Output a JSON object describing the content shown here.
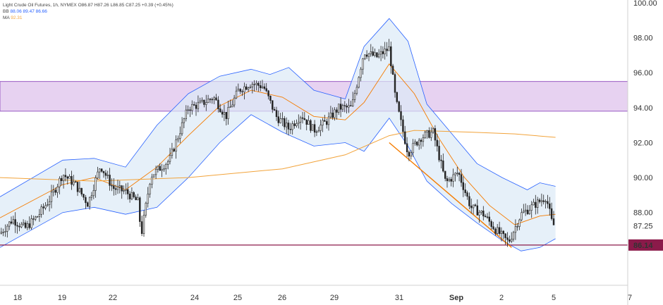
{
  "legend": {
    "title": "Light Crude Oil Futures, 1h, NYMEX",
    "ohlc": "O86.87 H87.26 L86.85 C87.25 +0.39 (+0.45%)",
    "bb_label": "BB",
    "bb_values": "88.06 89.47 86.66",
    "ma_label": "MA",
    "ma_value": "92.31"
  },
  "colors": {
    "candle": "#222222",
    "band_fill": "#dbeaf7",
    "band_line": "#2962ff",
    "bb_basis": "#f57c00",
    "ma": "#f2a33a",
    "trendline": "#f57c00",
    "zone": "#c99be0",
    "support": "#8b1a4a",
    "last_price_bg": "#8b1a4a"
  },
  "chart_data": {
    "type": "candlestick",
    "instrument": "Light Crude Oil Futures",
    "timeframe": "1h",
    "exchange": "NYMEX",
    "ylim": [
      84.2,
      100.0
    ],
    "y_ticks": [
      100.0,
      98.0,
      96.0,
      94.0,
      92.0,
      90.0,
      88.0,
      87.25,
      86.14
    ],
    "x_ticks": [
      {
        "label": "18",
        "bold": false
      },
      {
        "label": "19",
        "bold": false
      },
      {
        "label": "22",
        "bold": false
      },
      {
        "label": "24",
        "bold": false
      },
      {
        "label": "25",
        "bold": false
      },
      {
        "label": "26",
        "bold": false
      },
      {
        "label": "29",
        "bold": false
      },
      {
        "label": "31",
        "bold": false
      },
      {
        "label": "Sep",
        "bold": true
      },
      {
        "label": "2",
        "bold": false
      },
      {
        "label": "5",
        "bold": false
      },
      {
        "label": "7",
        "bold": false
      }
    ],
    "price_path": [
      [
        0,
        86.8
      ],
      [
        0.02,
        87.6
      ],
      [
        0.04,
        87.1
      ],
      [
        0.06,
        87.8
      ],
      [
        0.08,
        88.8
      ],
      [
        0.1,
        90.2
      ],
      [
        0.12,
        89.6
      ],
      [
        0.14,
        88.5
      ],
      [
        0.16,
        90.7
      ],
      [
        0.18,
        89.4
      ],
      [
        0.2,
        89.2
      ],
      [
        0.22,
        88.6
      ],
      [
        0.225,
        86.7
      ],
      [
        0.24,
        90.1
      ],
      [
        0.27,
        91.0
      ],
      [
        0.3,
        94.0
      ],
      [
        0.32,
        94.2
      ],
      [
        0.34,
        94.6
      ],
      [
        0.36,
        93.5
      ],
      [
        0.38,
        95.0
      ],
      [
        0.4,
        95.4
      ],
      [
        0.42,
        95.2
      ],
      [
        0.44,
        93.5
      ],
      [
        0.46,
        92.8
      ],
      [
        0.48,
        93.6
      ],
      [
        0.5,
        92.7
      ],
      [
        0.52,
        93.2
      ],
      [
        0.54,
        94.0
      ],
      [
        0.56,
        94.0
      ],
      [
        0.58,
        97.2
      ],
      [
        0.6,
        96.9
      ],
      [
        0.62,
        97.4
      ],
      [
        0.63,
        94.5
      ],
      [
        0.65,
        91.4
      ],
      [
        0.67,
        92.3
      ],
      [
        0.69,
        92.6
      ],
      [
        0.71,
        89.7
      ],
      [
        0.73,
        90.3
      ],
      [
        0.75,
        88.3
      ],
      [
        0.77,
        87.9
      ],
      [
        0.79,
        87.0
      ],
      [
        0.81,
        86.3
      ],
      [
        0.83,
        87.9
      ],
      [
        0.85,
        88.4
      ],
      [
        0.87,
        88.9
      ],
      [
        0.88,
        87.3
      ],
      [
        0.885,
        87.25
      ]
    ],
    "price_range": {
      "low": 86.14,
      "high": 97.8
    },
    "bollinger_bands": {
      "basis": [
        [
          0,
          87.7
        ],
        [
          0.1,
          89.6
        ],
        [
          0.15,
          90.0
        ],
        [
          0.2,
          89.3
        ],
        [
          0.25,
          90.6
        ],
        [
          0.3,
          92.4
        ],
        [
          0.35,
          94.1
        ],
        [
          0.4,
          95.0
        ],
        [
          0.45,
          94.6
        ],
        [
          0.5,
          93.5
        ],
        [
          0.55,
          93.3
        ],
        [
          0.58,
          94.3
        ],
        [
          0.62,
          96.5
        ],
        [
          0.66,
          94.8
        ],
        [
          0.7,
          92.2
        ],
        [
          0.74,
          90.0
        ],
        [
          0.78,
          88.4
        ],
        [
          0.82,
          87.3
        ],
        [
          0.86,
          87.8
        ],
        [
          0.885,
          87.9
        ]
      ],
      "upper": [
        [
          0,
          88.9
        ],
        [
          0.1,
          91.0
        ],
        [
          0.15,
          91.1
        ],
        [
          0.2,
          90.6
        ],
        [
          0.25,
          93.0
        ],
        [
          0.3,
          94.8
        ],
        [
          0.35,
          95.8
        ],
        [
          0.4,
          96.2
        ],
        [
          0.43,
          95.9
        ],
        [
          0.46,
          96.3
        ],
        [
          0.5,
          95.0
        ],
        [
          0.55,
          94.5
        ],
        [
          0.58,
          97.5
        ],
        [
          0.62,
          99.1
        ],
        [
          0.65,
          97.8
        ],
        [
          0.68,
          94.2
        ],
        [
          0.72,
          92.5
        ],
        [
          0.76,
          90.8
        ],
        [
          0.8,
          90.0
        ],
        [
          0.84,
          89.3
        ],
        [
          0.86,
          89.7
        ],
        [
          0.885,
          89.5
        ]
      ],
      "lower": [
        [
          0,
          86.0
        ],
        [
          0.1,
          88.0
        ],
        [
          0.15,
          88.3
        ],
        [
          0.2,
          87.9
        ],
        [
          0.25,
          88.3
        ],
        [
          0.3,
          90.0
        ],
        [
          0.35,
          92.0
        ],
        [
          0.4,
          93.6
        ],
        [
          0.45,
          92.6
        ],
        [
          0.5,
          91.8
        ],
        [
          0.55,
          92.0
        ],
        [
          0.58,
          91.5
        ],
        [
          0.62,
          93.4
        ],
        [
          0.65,
          91.8
        ],
        [
          0.68,
          89.8
        ],
        [
          0.72,
          88.5
        ],
        [
          0.76,
          87.4
        ],
        [
          0.8,
          86.4
        ],
        [
          0.83,
          85.8
        ],
        [
          0.86,
          86.0
        ],
        [
          0.885,
          86.5
        ]
      ]
    },
    "moving_average": [
      [
        0,
        90.0
      ],
      [
        0.15,
        89.8
      ],
      [
        0.3,
        90.0
      ],
      [
        0.45,
        90.5
      ],
      [
        0.55,
        91.3
      ],
      [
        0.62,
        92.4
      ],
      [
        0.66,
        92.7
      ],
      [
        0.75,
        92.6
      ],
      [
        0.82,
        92.5
      ],
      [
        0.885,
        92.3
      ]
    ],
    "resistance_zone": {
      "low": 93.8,
      "high": 95.5
    },
    "support_line": 86.14,
    "trendline": [
      [
        0.62,
        92.0
      ],
      [
        0.815,
        86.0
      ]
    ],
    "last_price": 87.25
  }
}
